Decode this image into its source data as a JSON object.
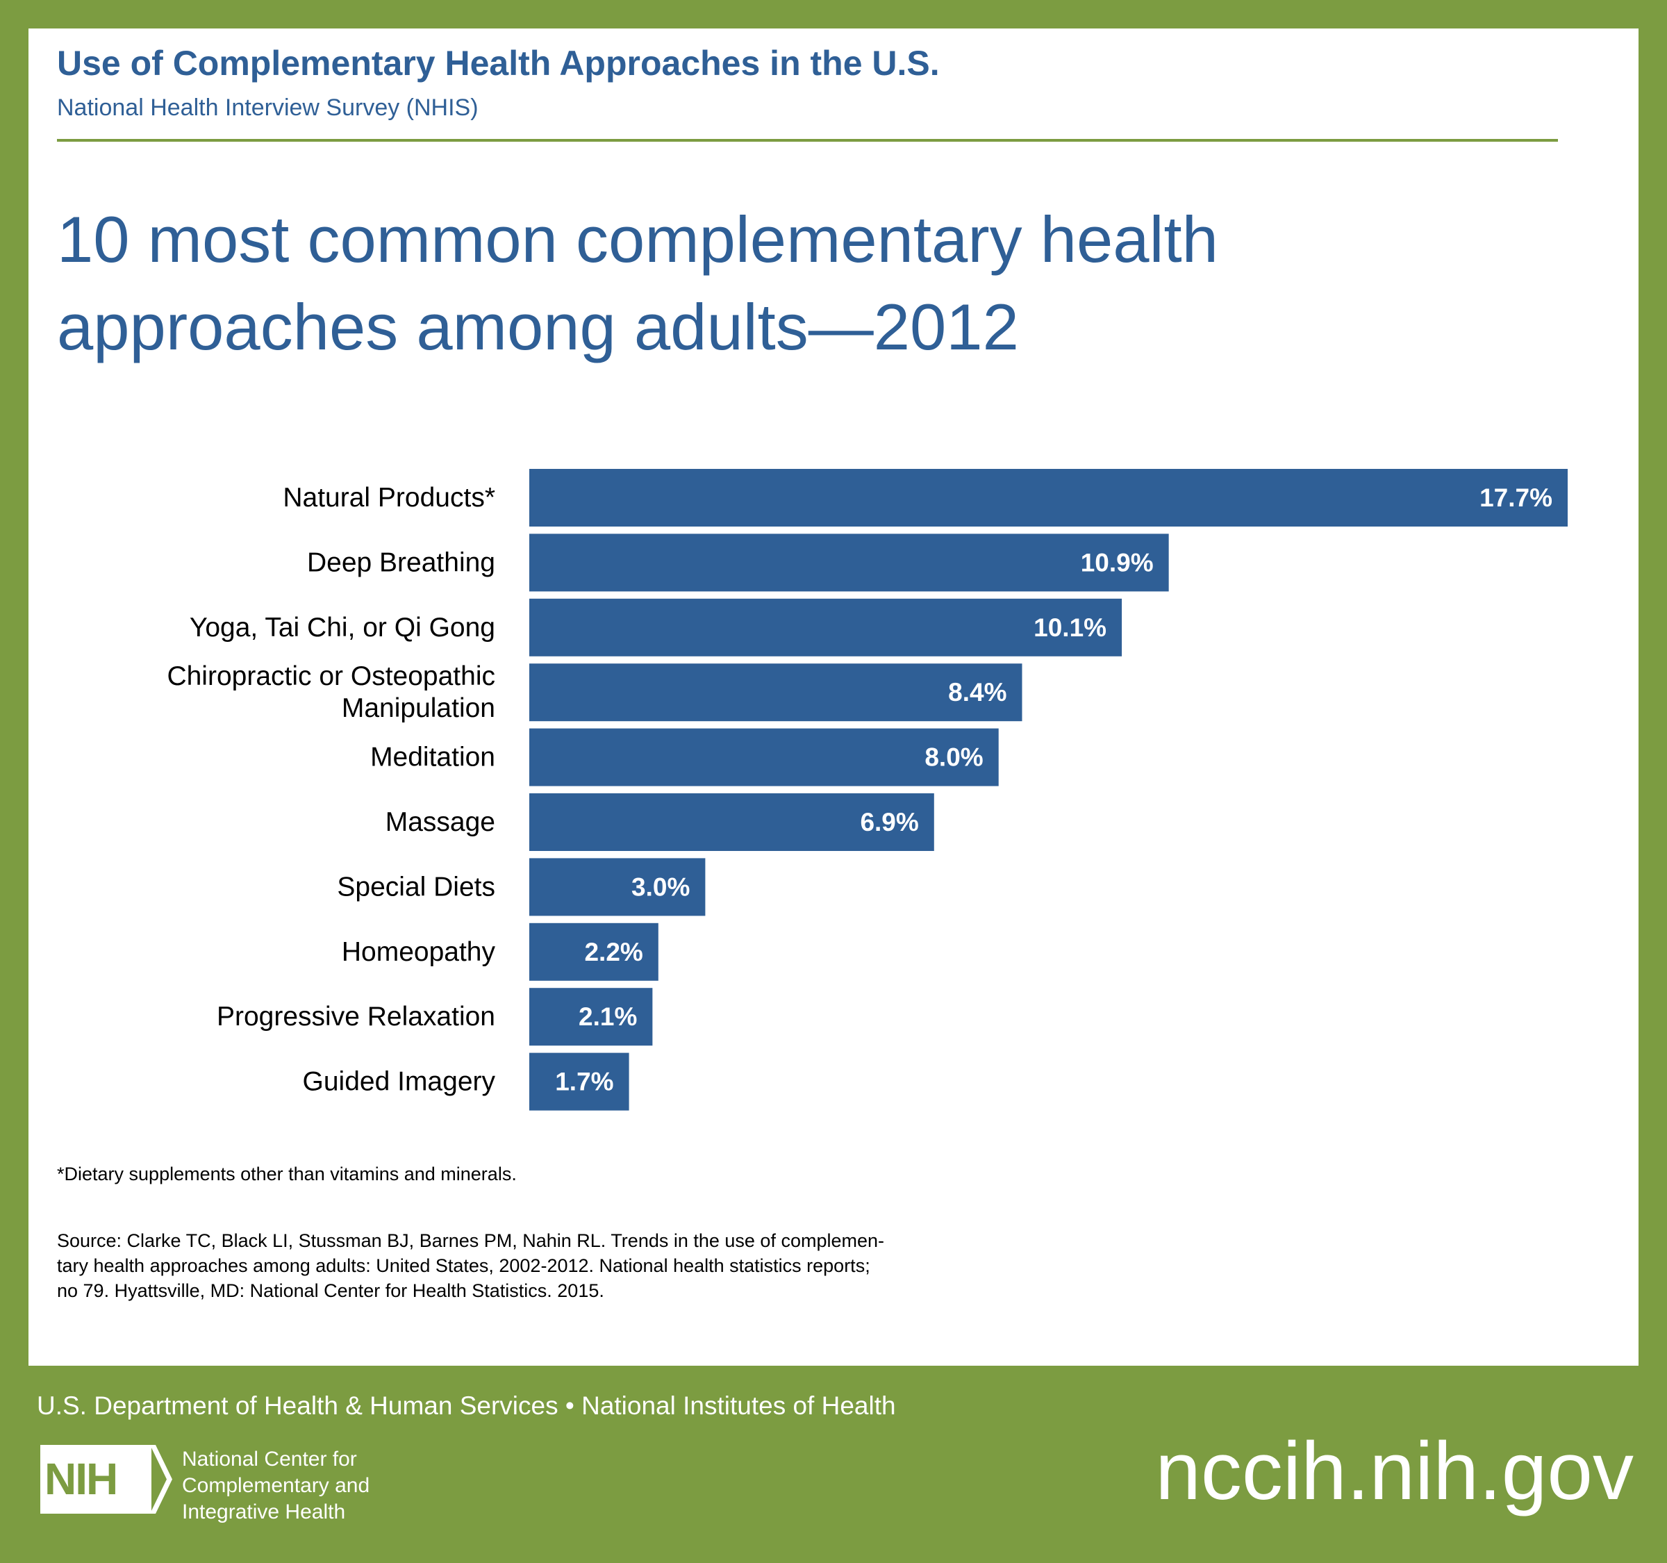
{
  "header": {
    "title": "Use of Complementary Health Approaches in the U.S.",
    "subtitle": "National Health Interview Survey (NHIS)"
  },
  "heading": {
    "line1": "10 most common complementary health",
    "line2": "approaches among adults—2012"
  },
  "chart_data": {
    "type": "bar",
    "orientation": "horizontal",
    "title": "10 most common complementary health approaches among adults—2012",
    "xlabel": "",
    "ylabel": "",
    "xlim": [
      0,
      17.7
    ],
    "unit": "%",
    "bar_color": "#2f5f96",
    "categories": [
      "Natural Products*",
      "Deep Breathing",
      "Yoga, Tai Chi, or Qi Gong",
      "Chiropractic or Osteopathic Manipulation",
      "Meditation",
      "Massage",
      "Special Diets",
      "Homeopathy",
      "Progressive Relaxation",
      "Guided Imagery"
    ],
    "category_lines": [
      [
        "Natural Products*"
      ],
      [
        "Deep Breathing"
      ],
      [
        "Yoga, Tai Chi, or Qi Gong"
      ],
      [
        "Chiropractic or Osteopathic",
        "Manipulation"
      ],
      [
        "Meditation"
      ],
      [
        "Massage"
      ],
      [
        "Special Diets"
      ],
      [
        "Homeopathy"
      ],
      [
        "Progressive Relaxation"
      ],
      [
        "Guided Imagery"
      ]
    ],
    "values": [
      17.7,
      10.9,
      10.1,
      8.4,
      8.0,
      6.9,
      3.0,
      2.2,
      2.1,
      1.7
    ],
    "value_labels": [
      "17.7%",
      "10.9%",
      "10.1%",
      "8.4%",
      "8.0%",
      "6.9%",
      "3.0%",
      "2.2%",
      "2.1%",
      "1.7%"
    ]
  },
  "footnote": "*Dietary supplements other than vitamins and minerals.",
  "source": {
    "line1": "Source: Clarke TC, Black LI, Stussman BJ, Barnes PM, Nahin RL. Trends in the use of complemen-",
    "line2": "tary health approaches among adults: United States, 2002-2012. National health statistics reports;",
    "line3": "no 79. Hyattsville, MD: National Center for Health Statistics. 2015."
  },
  "footer": {
    "department": "U.S. Department of Health & Human Services • National Institutes of Health",
    "logo_text": "NIH",
    "center_name_line1": "National Center for",
    "center_name_line2": "Complementary and",
    "center_name_line3": "Integrative Health",
    "url": "nccih.nih.gov"
  },
  "colors": {
    "brand_green": "#7c9c41",
    "brand_blue": "#2f5f96",
    "panel": "#ffffff"
  }
}
